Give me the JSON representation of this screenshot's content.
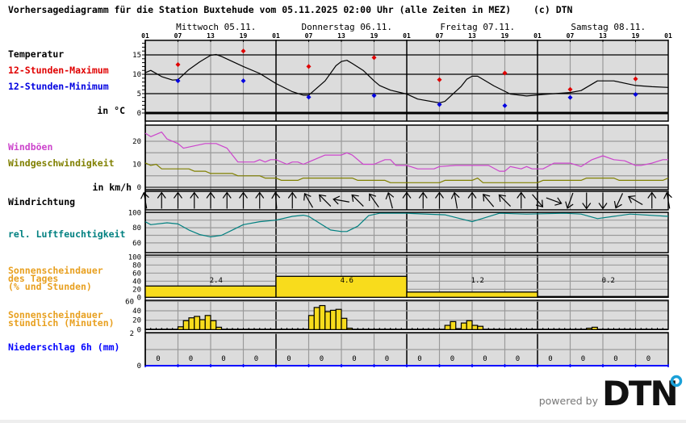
{
  "header": {
    "title": "Vorhersagediagramm für die Station Buxtehude vom 05.11.2025 02:00 Uhr (alle Zeiten in MEZ)",
    "copyright": "(c) DTN"
  },
  "days": [
    "Mittwoch 05.11.",
    "Donnerstag 06.11.",
    "Freitag 07.11.",
    "Samstag 08.11."
  ],
  "hour_labels": [
    "01",
    "07",
    "13",
    "19",
    "01",
    "07",
    "13",
    "19",
    "01",
    "07",
    "13",
    "19",
    "01",
    "07",
    "13",
    "19",
    "01"
  ],
  "labels": {
    "temperature": "Temperatur",
    "max12": "12-Stunden-Maximum",
    "min12": "12-Stunden-Minimum",
    "temp_unit": "in °C",
    "gusts": "Windböen",
    "wind_speed": "Windgeschwindigkeit",
    "wind_unit": "in km/h",
    "wind_direction": "Windrichtung",
    "humidity": "rel. Luftfeuchtigkeit",
    "sun_day_1": "Sonnenscheindauer",
    "sun_day_2": "des Tages",
    "sun_day_3": "(% und Stunden)",
    "sun_hour_1": "Sonnenscheindauer",
    "sun_hour_2": "stündlich (Minuten)",
    "precip": "Niederschlag 6h (mm)"
  },
  "colors": {
    "max": "#e00000",
    "min": "#0000e0",
    "gusts": "#cc44cc",
    "wind_speed": "#808000",
    "humidity": "#008080",
    "sun_fill": "#f8dc1c",
    "sun_label": "#e8a020",
    "precip": "#0000ff",
    "plot_bg": "#dcdcdc",
    "grid": "#9a9a9a"
  },
  "footer": {
    "powered_by": "powered by",
    "logo_text": "DTN"
  },
  "chart_data": [
    {
      "type": "line",
      "name": "Temperatur",
      "unit": "°C",
      "yticks": [
        "0",
        "5",
        "10",
        "15"
      ],
      "ylim": [
        0,
        18
      ],
      "series": [
        {
          "name": "Temperatur",
          "points": [
            [
              "05.11 01",
              10.4
            ],
            [
              "05.11 02",
              11
            ],
            [
              "05.11 04",
              9.4
            ],
            [
              "05.11 06",
              8.5
            ],
            [
              "05.11 07",
              8.6
            ],
            [
              "05.11 09",
              11.2
            ],
            [
              "05.11 11",
              13.2
            ],
            [
              "05.11 13",
              14.9
            ],
            [
              "05.11 14",
              15.1
            ],
            [
              "05.11 15",
              14.6
            ],
            [
              "05.11 17",
              13.3
            ],
            [
              "05.11 19",
              12
            ],
            [
              "05.11 22",
              10.2
            ],
            [
              "06.11 01",
              7.6
            ],
            [
              "06.11 04",
              5.5
            ],
            [
              "06.11 06",
              4.6
            ],
            [
              "06.11 07",
              4.6
            ],
            [
              "06.11 10",
              8.3
            ],
            [
              "06.11 12",
              12.2
            ],
            [
              "06.11 13",
              13.3
            ],
            [
              "06.11 14",
              13.6
            ],
            [
              "06.11 15",
              12.8
            ],
            [
              "06.11 17",
              11
            ],
            [
              "06.11 19",
              8.3
            ],
            [
              "06.11 20",
              7.1
            ],
            [
              "06.11 22",
              5.9
            ],
            [
              "07.11 01",
              4.9
            ],
            [
              "07.11 03",
              3.6
            ],
            [
              "07.11 07",
              2.6
            ],
            [
              "07.11 08",
              3
            ],
            [
              "07.11 11",
              6.9
            ],
            [
              "07.11 12",
              8.7
            ],
            [
              "07.11 13",
              9.5
            ],
            [
              "07.11 14",
              9.5
            ],
            [
              "07.11 17",
              7
            ],
            [
              "07.11 20",
              4.9
            ],
            [
              "07.11 23",
              4.4
            ],
            [
              "08.11 02",
              4.8
            ],
            [
              "08.11 07",
              5.3
            ],
            [
              "08.11 09",
              5.8
            ],
            [
              "08.11 12",
              8.3
            ],
            [
              "08.11 15",
              8.3
            ],
            [
              "08.11 19",
              7.1
            ],
            [
              "08.11 22",
              6.8
            ],
            [
              "09.11 01",
              6.6
            ]
          ]
        },
        {
          "name": "12-Stunden-Maximum",
          "points": [
            [
              "05.11 07",
              12.5
            ],
            [
              "05.11 19",
              16
            ],
            [
              "06.11 07",
              12
            ],
            [
              "06.11 19",
              14.3
            ],
            [
              "07.11 07",
              8.6
            ],
            [
              "07.11 19",
              10.3
            ],
            [
              "08.11 07",
              6.1
            ],
            [
              "08.11 19",
              8.8
            ]
          ]
        },
        {
          "name": "12-Stunden-Minimum",
          "points": [
            [
              "05.11 07",
              8.3
            ],
            [
              "05.11 19",
              8.3
            ],
            [
              "06.11 07",
              4.1
            ],
            [
              "06.11 19",
              4.5
            ],
            [
              "07.11 07",
              2.2
            ],
            [
              "07.11 19",
              1.9
            ],
            [
              "08.11 07",
              4
            ],
            [
              "08.11 19",
              4.8
            ]
          ]
        }
      ]
    },
    {
      "type": "line",
      "name": "Wind",
      "unit": "km/h",
      "yticks": [
        "0",
        "10",
        "20"
      ],
      "ylim": [
        0,
        27
      ],
      "series": [
        {
          "name": "Windböen",
          "points": [
            [
              "05.11 01",
              23.5
            ],
            [
              "05.11 02",
              22
            ],
            [
              "05.11 04",
              24
            ],
            [
              "05.11 05",
              21
            ],
            [
              "05.11 07",
              19
            ],
            [
              "05.11 08",
              17
            ],
            [
              "05.11 10",
              18
            ],
            [
              "05.11 12",
              19
            ],
            [
              "05.11 14",
              19
            ],
            [
              "05.11 16",
              17
            ],
            [
              "05.11 18",
              11
            ],
            [
              "05.11 21",
              11
            ],
            [
              "05.11 22",
              12
            ],
            [
              "05.11 23",
              11
            ],
            [
              "06.11 00",
              12
            ],
            [
              "06.11 01",
              12
            ],
            [
              "06.11 03",
              10
            ],
            [
              "06.11 04",
              11
            ],
            [
              "06.11 05",
              11
            ],
            [
              "06.11 06",
              10
            ],
            [
              "06.11 10",
              14
            ],
            [
              "06.11 13",
              14
            ],
            [
              "06.11 14",
              15
            ],
            [
              "06.11 15",
              14
            ],
            [
              "06.11 17",
              10
            ],
            [
              "06.11 19",
              10
            ],
            [
              "06.11 21",
              12
            ],
            [
              "06.11 22",
              12
            ],
            [
              "06.11 23",
              9.5
            ],
            [
              "07.11 01",
              9.5
            ],
            [
              "07.11 03",
              8
            ],
            [
              "07.11 06",
              8
            ],
            [
              "07.11 07",
              9
            ],
            [
              "07.11 10",
              9.5
            ],
            [
              "07.11 13",
              9.5
            ],
            [
              "07.11 16",
              9.5
            ],
            [
              "07.11 18",
              7
            ],
            [
              "07.11 19",
              7
            ],
            [
              "07.11 20",
              9
            ],
            [
              "07.11 22",
              8
            ],
            [
              "07.11 23",
              9
            ],
            [
              "08.11 00",
              8
            ],
            [
              "08.11 02",
              8
            ],
            [
              "08.11 04",
              10.5
            ],
            [
              "08.11 07",
              10.5
            ],
            [
              "08.11 09",
              9
            ],
            [
              "08.11 11",
              12
            ],
            [
              "08.11 13",
              13.7
            ],
            [
              "08.11 15",
              12
            ],
            [
              "08.11 17",
              11.5
            ],
            [
              "08.11 19",
              9.5
            ],
            [
              "08.11 20",
              9.5
            ],
            [
              "08.11 22",
              10.5
            ],
            [
              "09.11 00",
              12
            ],
            [
              "09.11 01",
              12
            ]
          ]
        },
        {
          "name": "Windgeschwindigkeit",
          "points": [
            [
              "05.11 01",
              10.6
            ],
            [
              "05.11 02",
              9.5
            ],
            [
              "05.11 03",
              10
            ],
            [
              "05.11 04",
              8
            ],
            [
              "05.11 09",
              8
            ],
            [
              "05.11 10",
              7
            ],
            [
              "05.11 12",
              7
            ],
            [
              "05.11 13",
              6
            ],
            [
              "05.11 17",
              6
            ],
            [
              "05.11 18",
              5
            ],
            [
              "05.11 22",
              5
            ],
            [
              "05.11 23",
              4
            ],
            [
              "06.11 01",
              4
            ],
            [
              "06.11 02",
              3
            ],
            [
              "06.11 05",
              3
            ],
            [
              "06.11 06",
              4
            ],
            [
              "06.11 15",
              4
            ],
            [
              "06.11 16",
              3
            ],
            [
              "06.11 21",
              3
            ],
            [
              "06.11 22",
              2
            ],
            [
              "07.11 07",
              2
            ],
            [
              "07.11 08",
              3
            ],
            [
              "07.11 13",
              3
            ],
            [
              "07.11 14",
              4
            ],
            [
              "07.11 15",
              2
            ],
            [
              "08.11 01",
              2
            ],
            [
              "08.11 02",
              3
            ],
            [
              "08.11 09",
              3
            ],
            [
              "08.11 10",
              4
            ],
            [
              "08.11 15",
              4
            ],
            [
              "08.11 16",
              3
            ],
            [
              "09.11 00",
              3
            ],
            [
              "09.11 01",
              4
            ]
          ]
        }
      ]
    },
    {
      "type": "arrows",
      "name": "Windrichtung",
      "start": "05.11 01",
      "step_hours": 3,
      "arrow_heading_deg": [
        -10,
        0,
        0,
        0,
        0,
        0,
        0,
        0,
        -5,
        0,
        -30,
        -45,
        -80,
        -45,
        -35,
        -15,
        0,
        0,
        0,
        -10,
        0,
        -40,
        -45,
        0,
        140,
        110,
        200,
        180,
        180,
        205,
        -60,
        0,
        -10
      ]
    },
    {
      "type": "line",
      "name": "rel. Luftfeuchtigkeit",
      "unit": "%",
      "yticks": [
        "60",
        "80",
        "100"
      ],
      "ylim": [
        50,
        100
      ],
      "series": [
        {
          "name": "rel. Luftfeuchtigkeit",
          "points": [
            [
              "05.11 01",
              88
            ],
            [
              "05.11 02",
              84
            ],
            [
              "05.11 05",
              86.5
            ],
            [
              "05.11 07",
              85
            ],
            [
              "05.11 09",
              77
            ],
            [
              "05.11 11",
              71
            ],
            [
              "05.11 13",
              68
            ],
            [
              "05.11 15",
              70
            ],
            [
              "05.11 17",
              77
            ],
            [
              "05.11 19",
              84
            ],
            [
              "05.11 22",
              88
            ],
            [
              "06.11 01",
              90
            ],
            [
              "06.11 04",
              95
            ],
            [
              "06.11 06",
              96.5
            ],
            [
              "06.11 07",
              95
            ],
            [
              "06.11 09",
              86
            ],
            [
              "06.11 11",
              77
            ],
            [
              "06.11 13",
              75
            ],
            [
              "06.11 14",
              75
            ],
            [
              "06.11 16",
              82
            ],
            [
              "06.11 18",
              96
            ],
            [
              "06.11 20",
              99
            ],
            [
              "07.11 01",
              99
            ],
            [
              "07.11 08",
              97
            ],
            [
              "07.11 13",
              88
            ],
            [
              "07.11 18",
              99
            ],
            [
              "07.11 23",
              98
            ],
            [
              "08.11 06",
              99
            ],
            [
              "08.11 09",
              98
            ],
            [
              "08.11 12",
              92
            ],
            [
              "08.11 18",
              98
            ],
            [
              "09.11 01",
              95
            ]
          ]
        }
      ]
    },
    {
      "type": "bar",
      "name": "Sonnenscheindauer des Tages",
      "unit": "% / Stunden",
      "yticks": [
        "0",
        "20",
        "40",
        "60",
        "80",
        "100"
      ],
      "ylim": [
        0,
        100
      ],
      "categories": [
        "05.11.",
        "06.11.",
        "07.11.",
        "08.11."
      ],
      "percent": [
        28,
        52,
        13,
        2
      ],
      "hours": [
        "2.4",
        "4.6",
        "1.2",
        "0.2"
      ]
    },
    {
      "type": "bar",
      "name": "Sonnenscheindauer stündlich",
      "unit": "Minuten",
      "yticks": [
        "0",
        "20",
        "40",
        "60"
      ],
      "ylim": [
        0,
        60
      ],
      "bars": [
        [
          "05.11 08",
          6
        ],
        [
          "05.11 09",
          19
        ],
        [
          "05.11 10",
          25
        ],
        [
          "05.11 11",
          28
        ],
        [
          "05.11 12",
          21
        ],
        [
          "05.11 13",
          30
        ],
        [
          "05.11 14",
          19
        ],
        [
          "05.11 15",
          5
        ],
        [
          "06.11 08",
          30
        ],
        [
          "06.11 09",
          47
        ],
        [
          "06.11 10",
          51
        ],
        [
          "06.11 11",
          38
        ],
        [
          "06.11 12",
          41
        ],
        [
          "06.11 13",
          43
        ],
        [
          "06.11 14",
          24
        ],
        [
          "06.11 15",
          3
        ],
        [
          "07.11 09",
          9
        ],
        [
          "07.11 10",
          17
        ],
        [
          "07.11 11",
          2
        ],
        [
          "07.11 12",
          14
        ],
        [
          "07.11 13",
          19
        ],
        [
          "07.11 14",
          9
        ],
        [
          "07.11 15",
          7
        ],
        [
          "08.11 11",
          3
        ],
        [
          "08.11 12",
          5
        ]
      ]
    },
    {
      "type": "bar",
      "name": "Niederschlag 6h",
      "unit": "mm",
      "yticks": [
        "0",
        "2"
      ],
      "ylim": [
        0,
        2
      ],
      "values": [
        "0",
        "0",
        "0",
        "0",
        "0",
        "0",
        "0",
        "0",
        "0",
        "0",
        "0",
        "0",
        "0",
        "0",
        "0",
        "0"
      ]
    }
  ]
}
